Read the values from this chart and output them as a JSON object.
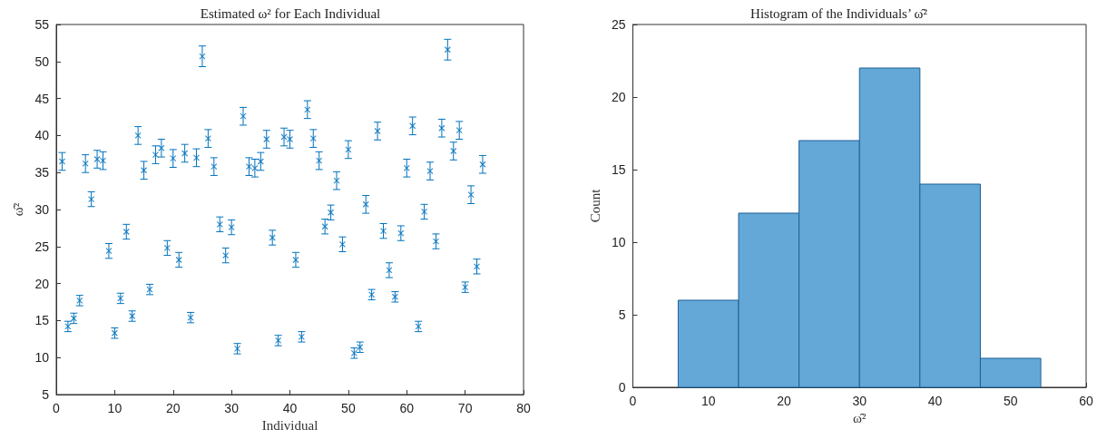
{
  "chart_data": [
    {
      "type": "scatter",
      "title": "Estimated ω² for Each Individual",
      "xlabel": "Individual",
      "ylabel": "ω̂²",
      "color": "#0072bd",
      "marker": "cross",
      "x": [
        1,
        2,
        3,
        4,
        5,
        6,
        7,
        8,
        9,
        10,
        11,
        12,
        13,
        14,
        15,
        16,
        17,
        18,
        19,
        20,
        21,
        22,
        23,
        24,
        25,
        26,
        27,
        28,
        29,
        30,
        31,
        32,
        33,
        34,
        35,
        36,
        37,
        38,
        39,
        40,
        41,
        42,
        43,
        44,
        45,
        46,
        47,
        48,
        49,
        50,
        51,
        52,
        53,
        54,
        55,
        56,
        57,
        58,
        59,
        60,
        61,
        62,
        63,
        64,
        65,
        66,
        67,
        68,
        69,
        70,
        71,
        72,
        73
      ],
      "values": [
        36.5,
        14.2,
        15.3,
        17.7,
        36.2,
        31.4,
        36.8,
        36.6,
        24.4,
        13.3,
        18.0,
        27.0,
        15.6,
        40.0,
        35.3,
        19.2,
        37.4,
        38.3,
        24.8,
        36.9,
        23.2,
        37.6,
        15.4,
        37.0,
        50.7,
        39.6,
        35.8,
        28.0,
        23.8,
        27.6,
        11.2,
        42.6,
        35.8,
        35.6,
        36.5,
        39.5,
        26.2,
        12.3,
        39.8,
        39.5,
        23.2,
        12.8,
        43.5,
        39.6,
        36.6,
        27.7,
        29.6,
        33.9,
        25.3,
        38.1,
        10.6,
        11.4,
        30.7,
        18.5,
        40.6,
        27.1,
        21.8,
        18.2,
        26.8,
        35.6,
        41.3,
        14.2,
        29.7,
        35.2,
        25.7,
        41.0,
        51.6,
        37.9,
        40.7,
        19.5,
        32.0,
        22.3,
        36.1
      ],
      "errors": [
        1.2,
        0.7,
        0.7,
        0.7,
        1.2,
        1.0,
        1.2,
        1.2,
        1.0,
        0.7,
        0.7,
        1.0,
        0.7,
        1.2,
        1.2,
        0.7,
        1.2,
        1.2,
        1.0,
        1.2,
        1.0,
        1.2,
        0.7,
        1.2,
        1.4,
        1.2,
        1.2,
        1.0,
        1.0,
        1.0,
        0.7,
        1.2,
        1.2,
        1.2,
        1.2,
        1.2,
        1.0,
        0.7,
        1.2,
        1.2,
        1.0,
        0.7,
        1.2,
        1.2,
        1.2,
        1.0,
        1.0,
        1.2,
        1.0,
        1.2,
        0.7,
        0.7,
        1.2,
        0.7,
        1.2,
        1.0,
        1.0,
        0.7,
        1.0,
        1.2,
        1.2,
        0.7,
        1.0,
        1.2,
        1.0,
        1.2,
        1.4,
        1.2,
        1.2,
        0.7,
        1.2,
        1.0,
        1.2
      ],
      "xlim": [
        0,
        80
      ],
      "xticks": [
        0,
        10,
        20,
        30,
        40,
        50,
        60,
        70,
        80
      ],
      "ylim": [
        5,
        55
      ],
      "yticks": [
        5,
        10,
        15,
        20,
        25,
        30,
        35,
        40,
        45,
        50,
        55
      ]
    },
    {
      "type": "histogram",
      "title": "Histogram of the Individuals’ ω̂²",
      "xlabel": "ω̂²",
      "ylabel": "Count",
      "color": "#64a8d8",
      "bins": [
        6,
        14,
        22,
        30,
        38,
        46,
        54
      ],
      "values": [
        6,
        12,
        17,
        22,
        14,
        2
      ],
      "xlim": [
        0,
        60
      ],
      "xticks": [
        0,
        10,
        20,
        30,
        40,
        50,
        60
      ],
      "ylim": [
        0,
        25
      ],
      "yticks": [
        0,
        5,
        10,
        15,
        20,
        25
      ]
    }
  ]
}
